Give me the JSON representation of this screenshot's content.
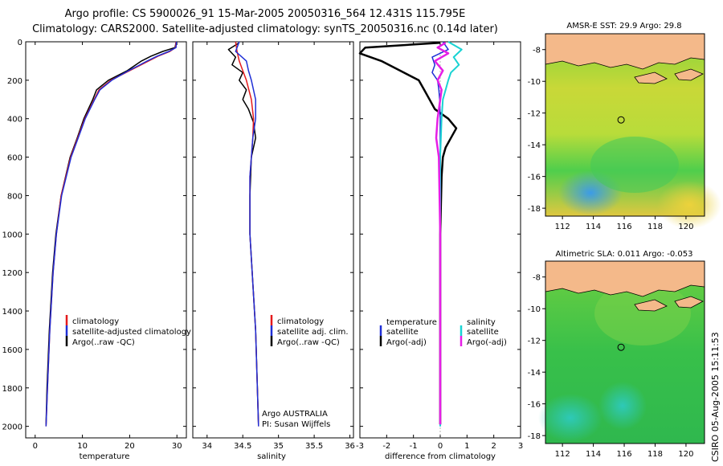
{
  "header": {
    "title_line1": "Argo profile: CS 5900026_91 15-Mar-2005 20050316_564 12.431S 115.795E",
    "title_line2": "Climatology: CARS2000. Satellite-adjusted climatology: synTS_20050316.nc (0.14d later)"
  },
  "colors": {
    "climatology": "#e41a1c",
    "satellite": "#1f2fd6",
    "argo": "#000000",
    "salinity_sat": "#19d3d3",
    "salinity_argo": "#e61ee6"
  },
  "panels": {
    "temperature": {
      "xlabel": "temperature",
      "legend": [
        "climatology",
        "satellite-adjusted climatology",
        "Argo(..raw -QC)"
      ]
    },
    "salinity": {
      "xlabel": "salinity",
      "legend": [
        "climatology",
        "satellite adj. clim.",
        "Argo(..raw -QC)"
      ],
      "credit1": "Argo AUSTRALIA",
      "credit2": "PI: Susan Wijffels"
    },
    "difference": {
      "xlabel": "difference from climatology",
      "legend_left_title": "temperature",
      "legend_left": [
        "satellite",
        "Argo(-adj)"
      ],
      "legend_right_title": "salinity",
      "legend_right": [
        "satellite",
        "Argo(-adj)"
      ]
    }
  },
  "maps": {
    "sst_title": "AMSR-E SST: 29.9 Argo: 29.8",
    "sla_title": "Altimetric SLA: 0.011 Argo: -0.053",
    "yticks": [
      "-8",
      "-10",
      "-12",
      "-14",
      "-16",
      "-18"
    ],
    "xticks": [
      "112",
      "114",
      "116",
      "118",
      "120"
    ],
    "float_lon": 115.795,
    "float_lat": -12.431
  },
  "stamp": "CSIRO 05-Aug-2005 15:11:53",
  "chart_data": [
    {
      "type": "line",
      "name": "temperature-profile",
      "xlabel": "temperature",
      "ylabel": "",
      "xlim": [
        -2,
        32
      ],
      "ylim": [
        2060,
        0
      ],
      "xticks": [
        0,
        10,
        20,
        30
      ],
      "yticks": [
        0,
        200,
        400,
        600,
        800,
        1000,
        1200,
        1400,
        1600,
        1800,
        2000
      ],
      "series": [
        {
          "name": "climatology",
          "y": [
            0,
            30,
            50,
            75,
            100,
            125,
            150,
            200,
            250,
            300,
            400,
            500,
            600,
            800,
            1000,
            1200,
            1500,
            1800,
            2000
          ],
          "x": [
            29.8,
            29.7,
            28.5,
            26,
            24,
            22,
            20,
            16,
            13.5,
            12.5,
            10.5,
            9,
            7.5,
            5.5,
            4.5,
            3.8,
            3.1,
            2.6,
            2.3
          ]
        },
        {
          "name": "satellite-adjusted climatology",
          "y": [
            0,
            30,
            50,
            75,
            100,
            125,
            150,
            200,
            250,
            300,
            400,
            500,
            600,
            800,
            1000,
            1200,
            1500,
            1800,
            2000
          ],
          "x": [
            29.9,
            29.8,
            28.3,
            25.8,
            23.7,
            21.8,
            19.8,
            16.2,
            13.7,
            12.6,
            10.6,
            9.1,
            7.6,
            5.6,
            4.5,
            3.8,
            3.1,
            2.6,
            2.3
          ]
        },
        {
          "name": "Argo(..raw -QC)",
          "y": [
            5,
            30,
            50,
            75,
            100,
            125,
            150,
            200,
            250,
            300,
            400,
            500,
            600,
            800,
            1000,
            1200,
            1500,
            1800,
            1990
          ],
          "x": [
            29.8,
            29.6,
            27,
            24.5,
            22.5,
            21,
            19.5,
            15.5,
            13,
            12.2,
            10.3,
            8.9,
            7.4,
            5.5,
            4.4,
            3.7,
            3.0,
            2.5,
            2.3
          ]
        }
      ]
    },
    {
      "type": "line",
      "name": "salinity-profile",
      "xlabel": "salinity",
      "xlim": [
        33.8,
        36.05
      ],
      "ylim": [
        2060,
        0
      ],
      "xticks": [
        34,
        34.5,
        35,
        35.5,
        36
      ],
      "series": [
        {
          "name": "climatology",
          "y": [
            0,
            50,
            100,
            150,
            200,
            300,
            400,
            500,
            700,
            1000,
            1500,
            2000
          ],
          "x": [
            34.4,
            34.42,
            34.45,
            34.5,
            34.55,
            34.62,
            34.65,
            34.64,
            34.6,
            34.6,
            34.68,
            34.72
          ]
        },
        {
          "name": "satellite adj. clim.",
          "y": [
            0,
            50,
            100,
            150,
            200,
            300,
            400,
            500,
            700,
            1000,
            1500,
            2000
          ],
          "x": [
            34.45,
            34.4,
            34.55,
            34.58,
            34.62,
            34.68,
            34.68,
            34.64,
            34.6,
            34.6,
            34.68,
            34.72
          ]
        },
        {
          "name": "Argo(..raw -QC)",
          "y": [
            5,
            40,
            80,
            120,
            160,
            200,
            250,
            300,
            350,
            420,
            500,
            600,
            800,
            1000,
            1500,
            1990
          ],
          "x": [
            34.45,
            34.3,
            34.4,
            34.35,
            34.5,
            34.45,
            34.55,
            34.5,
            34.58,
            34.65,
            34.68,
            34.62,
            34.6,
            34.6,
            34.68,
            34.72
          ]
        }
      ]
    },
    {
      "type": "line",
      "name": "difference-profile",
      "xlabel": "difference from climatology",
      "xlim": [
        -3,
        3
      ],
      "ylim": [
        2060,
        0
      ],
      "xticks": [
        -3,
        -2,
        -1,
        0,
        1,
        2,
        3
      ],
      "series": [
        {
          "name": "temperature satellite",
          "y": [
            0,
            40,
            80,
            120,
            160,
            200,
            250,
            300,
            400,
            600,
            1000,
            1500,
            2000
          ],
          "x": [
            0.1,
            0.3,
            -0.3,
            -0.2,
            -0.3,
            -0.1,
            -0.05,
            -0.02,
            0,
            0,
            0,
            0,
            0
          ]
        },
        {
          "name": "temperature Argo(-adj)",
          "y": [
            5,
            30,
            60,
            100,
            150,
            200,
            250,
            300,
            350,
            400,
            450,
            500,
            550,
            600,
            700,
            1000,
            1500,
            1990
          ],
          "x": [
            0,
            -2.8,
            -3.0,
            -2.2,
            -1.5,
            -0.8,
            -0.6,
            -0.4,
            -0.2,
            0.3,
            0.6,
            0.4,
            0.2,
            0.1,
            0.05,
            0,
            0,
            0
          ]
        },
        {
          "name": "salinity satellite",
          "y": [
            0,
            40,
            80,
            120,
            160,
            200,
            250,
            300,
            400,
            600,
            1000,
            1500,
            2000
          ],
          "x": [
            0.3,
            0.8,
            0.5,
            0.7,
            0.4,
            0.3,
            0.2,
            0.1,
            0.05,
            0,
            0,
            0,
            0
          ]
        },
        {
          "name": "salinity Argo(-adj)",
          "y": [
            5,
            30,
            60,
            100,
            150,
            200,
            250,
            300,
            400,
            500,
            600,
            1000,
            1500,
            1990
          ],
          "x": [
            0.2,
            -0.1,
            0.3,
            -0.2,
            0.1,
            -0.1,
            0.05,
            0,
            -0.1,
            -0.15,
            -0.05,
            0,
            0,
            0
          ]
        }
      ]
    }
  ]
}
